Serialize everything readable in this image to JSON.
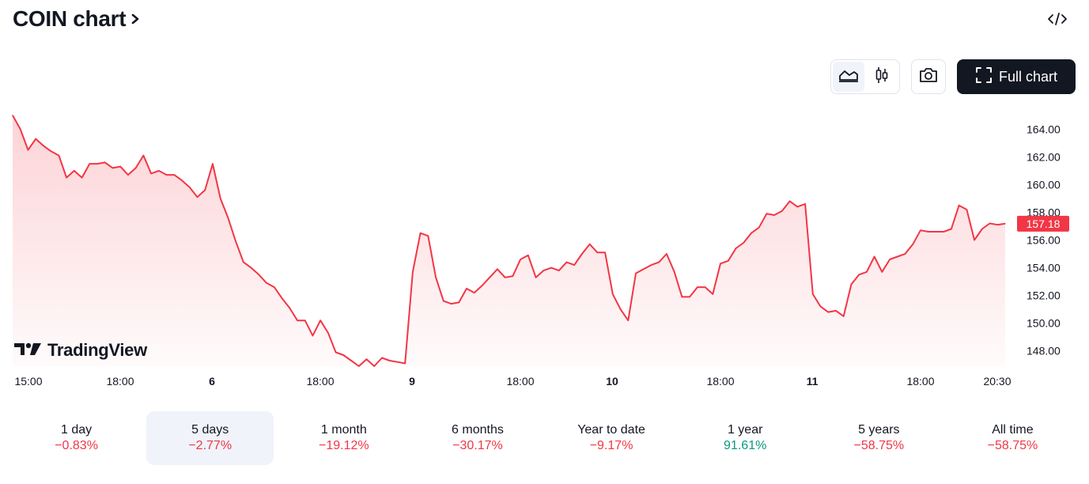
{
  "header": {
    "title": "COIN chart",
    "embed_icon": "code-icon"
  },
  "toolbar": {
    "area_icon": "area-chart-icon",
    "candles_icon": "candlestick-icon",
    "camera_icon": "camera-icon",
    "full_chart_icon": "fullscreen-icon",
    "full_chart_label": "Full chart"
  },
  "watermark": {
    "label": "TradingView"
  },
  "colors": {
    "line": "#f23645",
    "fill_top": "#fcd7d9",
    "positive": "#089981",
    "negative": "#f23645",
    "price_label_bg": "#f23645"
  },
  "chart_data": {
    "type": "area",
    "title": "",
    "xlabel": "",
    "ylabel": "",
    "ylim": [
      146.9,
      165.9
    ],
    "y_ticks": [
      "164.00",
      "162.00",
      "160.00",
      "158.00",
      "156.00",
      "154.00",
      "152.00",
      "150.00",
      "148.00"
    ],
    "x_ticks": [
      {
        "label": "15:00",
        "bold": false
      },
      {
        "label": "18:00",
        "bold": false
      },
      {
        "label": "6",
        "bold": true
      },
      {
        "label": "18:00",
        "bold": false
      },
      {
        "label": "9",
        "bold": true
      },
      {
        "label": "18:00",
        "bold": false
      },
      {
        "label": "10",
        "bold": true
      },
      {
        "label": "18:00",
        "bold": false
      },
      {
        "label": "11",
        "bold": true
      },
      {
        "label": "18:00",
        "bold": false
      },
      {
        "label": "20:30",
        "bold": false
      }
    ],
    "last_price": "157.18",
    "series": [
      {
        "values": [
          165.0,
          164.0,
          162.5,
          163.3,
          162.8,
          162.4,
          162.1,
          160.5,
          161.0,
          160.5,
          161.5,
          161.5,
          161.6,
          161.2,
          161.3,
          160.7,
          161.2,
          162.1,
          160.8,
          161.0,
          160.7,
          160.7,
          160.3,
          159.8,
          159.1,
          159.6,
          161.5,
          159.0,
          157.6,
          155.9,
          154.4,
          154.0,
          153.5,
          152.9,
          152.6,
          151.8,
          151.1,
          150.2,
          150.2,
          149.1,
          150.2,
          149.3,
          147.9,
          147.7,
          147.3,
          146.9,
          147.4,
          146.9,
          147.5,
          147.3,
          147.2,
          147.1,
          153.7,
          156.5,
          156.3,
          153.3,
          151.6,
          151.4,
          151.5,
          152.5,
          152.2,
          152.7,
          153.3,
          153.9,
          153.3,
          153.4,
          154.6,
          154.9,
          153.3,
          153.8,
          154.0,
          153.8,
          154.4,
          154.2,
          155.0,
          155.7,
          155.1,
          155.1,
          152.1,
          151.0,
          150.2,
          153.6,
          153.9,
          154.2,
          154.4,
          155.0,
          153.7,
          151.9,
          151.9,
          152.6,
          152.6,
          152.1,
          154.3,
          154.5,
          155.4,
          155.8,
          156.5,
          156.9,
          157.9,
          157.8,
          158.1,
          158.8,
          158.4,
          158.6,
          152.1,
          151.2,
          150.8,
          150.9,
          150.5,
          152.8,
          153.5,
          153.7,
          154.8,
          153.7,
          154.6,
          154.8,
          155.0,
          155.7,
          156.7,
          156.6,
          156.6,
          156.6,
          156.8,
          158.5,
          158.2,
          156.0,
          156.8,
          157.2,
          157.1,
          157.18
        ]
      }
    ]
  },
  "periods": [
    {
      "label": "1 day",
      "change": "−0.83%",
      "dir": "neg",
      "active": false
    },
    {
      "label": "5 days",
      "change": "−2.77%",
      "dir": "neg",
      "active": true
    },
    {
      "label": "1 month",
      "change": "−19.12%",
      "dir": "neg",
      "active": false
    },
    {
      "label": "6 months",
      "change": "−30.17%",
      "dir": "neg",
      "active": false
    },
    {
      "label": "Year to date",
      "change": "−9.17%",
      "dir": "neg",
      "active": false
    },
    {
      "label": "1 year",
      "change": "91.61%",
      "dir": "pos",
      "active": false
    },
    {
      "label": "5 years",
      "change": "−58.75%",
      "dir": "neg",
      "active": false
    },
    {
      "label": "All time",
      "change": "−58.75%",
      "dir": "neg",
      "active": false
    }
  ]
}
